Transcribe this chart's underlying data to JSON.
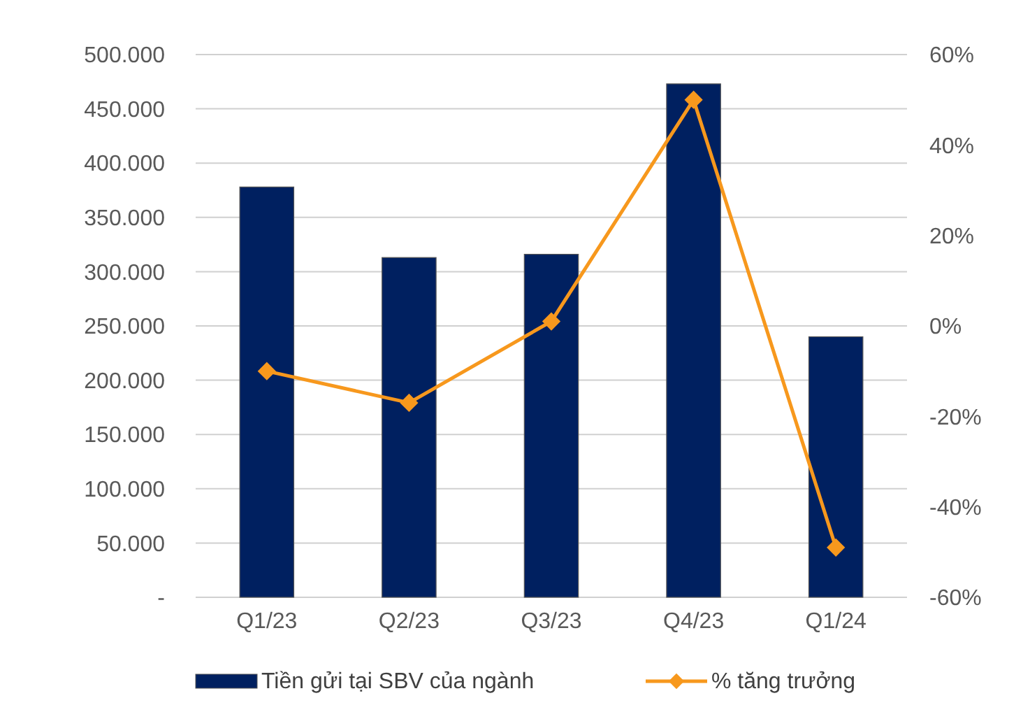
{
  "chart_data": {
    "type": "bar",
    "categories": [
      "Q1/23",
      "Q2/23",
      "Q3/23",
      "Q4/23",
      "Q1/24"
    ],
    "series": [
      {
        "name": "Tiền gửi tại SBV của ngành",
        "color": "#002060",
        "values": [
          378000,
          313000,
          316000,
          473000,
          240000
        ]
      },
      {
        "name": "% tăng trưởng",
        "type": "line",
        "axis": "y2",
        "color": "#f7981d",
        "values": [
          -10,
          -17,
          1,
          50,
          -49
        ]
      }
    ],
    "ylim": [
      0,
      500000
    ],
    "yticks": [
      {
        "value": 0,
        "label": "-"
      },
      {
        "value": 50000,
        "label": "50.000"
      },
      {
        "value": 100000,
        "label": "100.000"
      },
      {
        "value": 150000,
        "label": "150.000"
      },
      {
        "value": 200000,
        "label": "200.000"
      },
      {
        "value": 250000,
        "label": "250.000"
      },
      {
        "value": 300000,
        "label": "300.000"
      },
      {
        "value": 350000,
        "label": "350.000"
      },
      {
        "value": 400000,
        "label": "400.000"
      },
      {
        "value": 450000,
        "label": "450.000"
      },
      {
        "value": 500000,
        "label": "500.000"
      }
    ],
    "y2lim": [
      -60,
      60
    ],
    "y2ticks": [
      {
        "value": -60,
        "label": "-60%"
      },
      {
        "value": -40,
        "label": "-40%"
      },
      {
        "value": -20,
        "label": "-20%"
      },
      {
        "value": 0,
        "label": "0%"
      },
      {
        "value": 20,
        "label": "20%"
      },
      {
        "value": 40,
        "label": "40%"
      },
      {
        "value": 60,
        "label": "60%"
      }
    ],
    "grid": "y",
    "legend": "bottom",
    "marker": "diamond",
    "line_style": "solid"
  }
}
